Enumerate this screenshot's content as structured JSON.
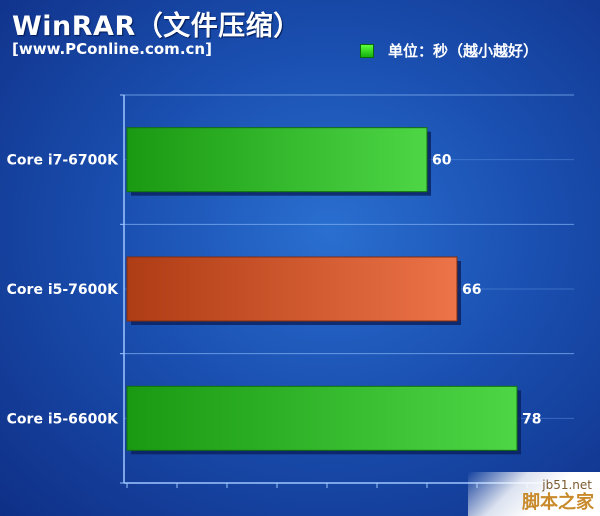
{
  "chart_data": {
    "type": "bar",
    "orientation": "horizontal",
    "title": "WinRAR（文件压缩）",
    "subtitle": "[www.PConline.com.cn]",
    "legend": "单位：秒（越小越好）",
    "legend_position": "top-right",
    "categories": [
      "Core i7-6700K",
      "Core i5-7600K",
      "Core i5-6600K"
    ],
    "values": [
      60,
      66,
      78
    ],
    "bar_colors": [
      "#22cc18",
      "#e8501a",
      "#22cc18"
    ],
    "xlim": [
      0,
      100
    ],
    "grid": true
  },
  "watermark": {
    "site": "jb51.net",
    "name": "脚本之家"
  }
}
